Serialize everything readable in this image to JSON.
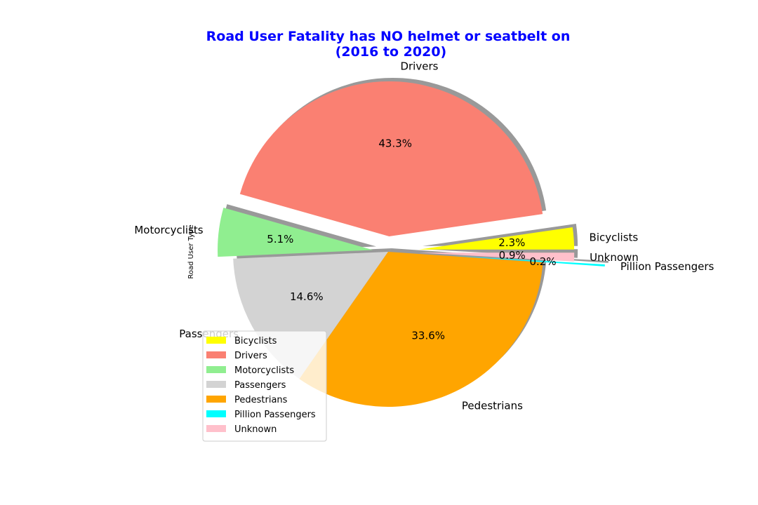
{
  "chart_data": {
    "type": "pie",
    "title_lines": [
      "Road User Fatality has NO helmet or seatbelt on",
      "(2016 to 2020)"
    ],
    "ylabel": "Road User Type",
    "categories": [
      "Bicyclists",
      "Drivers",
      "Motorcyclists",
      "Passengers",
      "Pedestrians",
      "Pillion Passengers",
      "Unknown"
    ],
    "values": [
      2.3,
      43.3,
      5.1,
      14.6,
      33.6,
      0.2,
      0.9
    ],
    "pct_labels": [
      "2.3%",
      "43.3%",
      "5.1%",
      "14.6%",
      "33.6%",
      "0.2%",
      "0.9%"
    ],
    "colors": [
      "#ffff00",
      "#fa8072",
      "#90ee90",
      "#d3d3d3",
      "#ffa500",
      "#00ffff",
      "#ffc0cb"
    ],
    "explode": [
      0.2,
      0.1,
      0.1,
      0.0,
      0.0,
      0.4,
      0.2
    ],
    "shadow": true,
    "legend_placement": "lower-left",
    "legend_entries": [
      "Bicyclists",
      "Drivers",
      "Motorcyclists",
      "Passengers",
      "Pedestrians",
      "Pillion Passengers",
      "Unknown"
    ]
  }
}
